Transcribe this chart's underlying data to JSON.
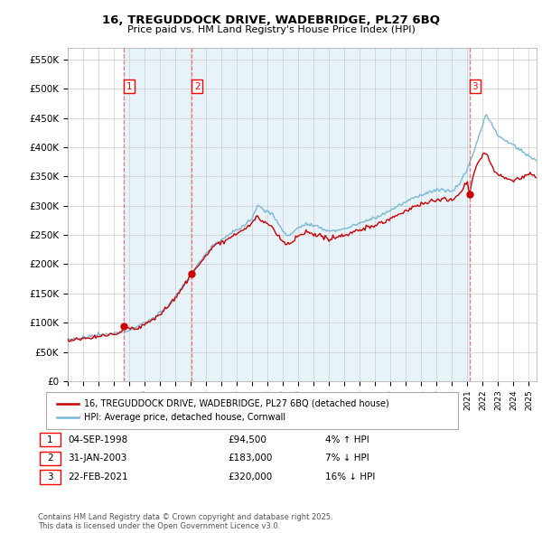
{
  "title": "16, TREGUDDOCK DRIVE, WADEBRIDGE, PL27 6BQ",
  "subtitle": "Price paid vs. HM Land Registry's House Price Index (HPI)",
  "ylabel_ticks": [
    "£0",
    "£50K",
    "£100K",
    "£150K",
    "£200K",
    "£250K",
    "£300K",
    "£350K",
    "£400K",
    "£450K",
    "£500K",
    "£550K"
  ],
  "ytick_values": [
    0,
    50000,
    100000,
    150000,
    200000,
    250000,
    300000,
    350000,
    400000,
    450000,
    500000,
    550000
  ],
  "ylim": [
    0,
    570000
  ],
  "xlim_start": 1995.0,
  "xlim_end": 2025.5,
  "sales": [
    {
      "date": 1998.67,
      "price": 94500,
      "label": "1"
    },
    {
      "date": 2003.08,
      "price": 183000,
      "label": "2"
    },
    {
      "date": 2021.14,
      "price": 320000,
      "label": "3"
    }
  ],
  "legend_line1": "16, TREGUDDOCK DRIVE, WADEBRIDGE, PL27 6BQ (detached house)",
  "legend_line2": "HPI: Average price, detached house, Cornwall",
  "table_rows": [
    {
      "num": "1",
      "date": "04-SEP-1998",
      "price": "£94,500",
      "pct": "4%",
      "arrow": "↑",
      "hpi": "HPI"
    },
    {
      "num": "2",
      "date": "31-JAN-2003",
      "price": "£183,000",
      "pct": "7%",
      "arrow": "↓",
      "hpi": "HPI"
    },
    {
      "num": "3",
      "date": "22-FEB-2021",
      "price": "£320,000",
      "pct": "16%",
      "arrow": "↓",
      "hpi": "HPI"
    }
  ],
  "footnote": "Contains HM Land Registry data © Crown copyright and database right 2025.\nThis data is licensed under the Open Government Licence v3.0.",
  "hpi_color": "#7ab8d8",
  "price_color": "#cc0000",
  "vline_color": "#ff6666",
  "shade_color": "#d8eaf5",
  "grid_color": "#cccccc",
  "background_color": "#ffffff",
  "plot_bg_color": "#ffffff"
}
